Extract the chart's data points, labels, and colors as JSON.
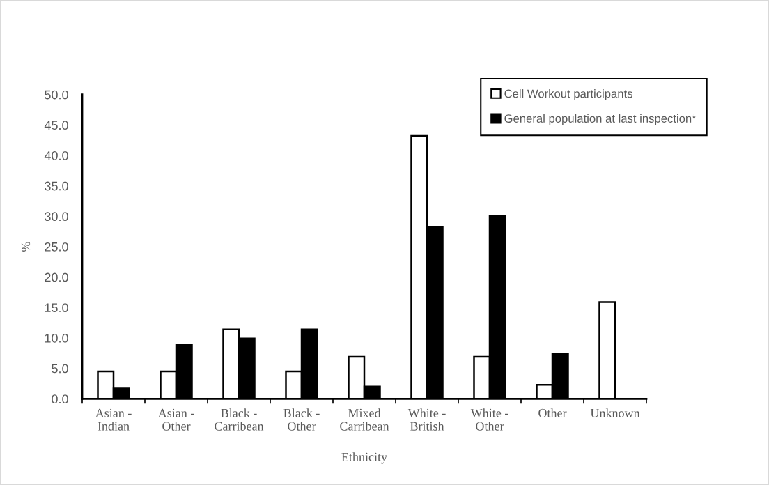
{
  "chart_data": {
    "type": "bar",
    "xlabel": "Ethnicity",
    "ylabel": "%",
    "categories": [
      "Asian -\nIndian",
      "Asian -\nOther",
      "Black -\nCarribean",
      "Black -\nOther",
      "Mixed\nCarribean",
      "White -\nBritish",
      "White -\nOther",
      "Other",
      "Unknown"
    ],
    "series": [
      {
        "name": "Cell Workout participants",
        "color": "#ffffff",
        "values": [
          4.5,
          4.5,
          11.4,
          4.5,
          6.9,
          43.2,
          6.9,
          2.3,
          15.9
        ]
      },
      {
        "name": "General population at last inspection*",
        "color": "#000000",
        "values": [
          1.7,
          8.9,
          9.9,
          11.4,
          2.0,
          28.2,
          30.0,
          7.4,
          null
        ]
      }
    ],
    "ylim": [
      0,
      50
    ],
    "yticks": [
      {
        "value": 0,
        "label": "0.0"
      },
      {
        "value": 5,
        "label": "5.0"
      },
      {
        "value": 10,
        "label": "10.0"
      },
      {
        "value": 15,
        "label": "15.0"
      },
      {
        "value": 20,
        "label": "20.0"
      },
      {
        "value": 25,
        "label": "25.0"
      },
      {
        "value": 30,
        "label": "30.0"
      },
      {
        "value": 35,
        "label": "35.0"
      },
      {
        "value": 40,
        "label": "40.0"
      },
      {
        "value": 45,
        "label": "45.0"
      },
      {
        "value": 50,
        "label": "50.0"
      }
    ],
    "grid": false,
    "legend": "top right"
  }
}
